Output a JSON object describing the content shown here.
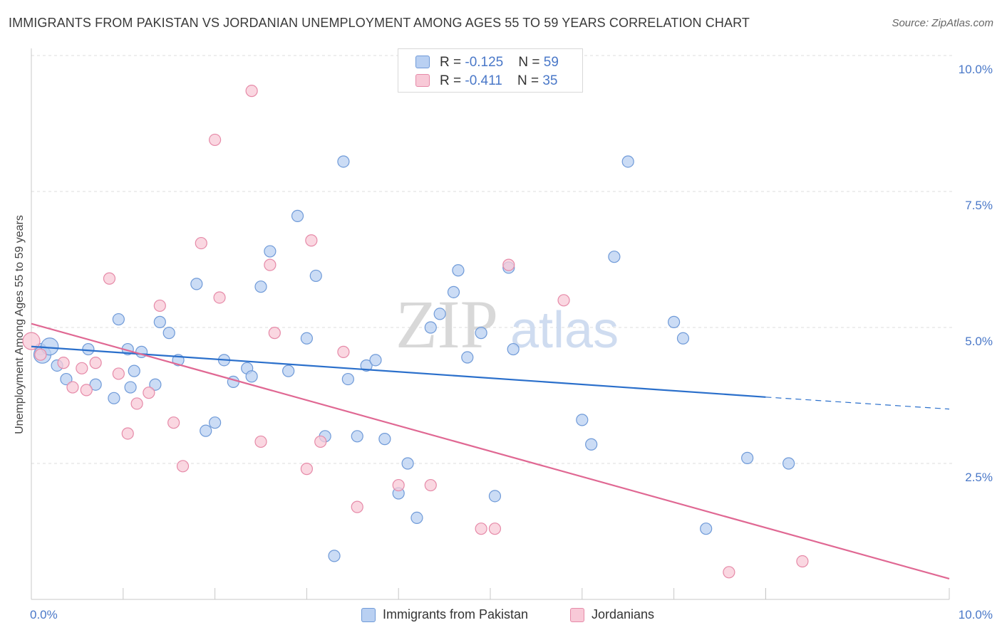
{
  "header": {
    "title": "IMMIGRANTS FROM PAKISTAN VS JORDANIAN UNEMPLOYMENT AMONG AGES 55 TO 59 YEARS CORRELATION CHART",
    "source": "Source: ZipAtlas.com"
  },
  "watermark": {
    "zip": "ZIP",
    "atlas": "atlas"
  },
  "legend_top": {
    "rows": [
      {
        "r_label": "R = ",
        "r_value": "-0.125",
        "n_label": "N = ",
        "n_value": "59"
      },
      {
        "r_label": "R = ",
        "r_value": "-0.411",
        "n_label": "N = ",
        "n_value": "35"
      }
    ]
  },
  "legend_bottom": {
    "items": [
      {
        "label": "Immigrants from Pakistan"
      },
      {
        "label": "Jordanians"
      }
    ]
  },
  "colors": {
    "pakistan_fill": "#b9d0f2",
    "pakistan_stroke": "#6f9ad8",
    "pakistan_line": "#2a6fcb",
    "jordan_fill": "#f8c9d7",
    "jordan_stroke": "#e68aa8",
    "jordan_line": "#e06893",
    "grid": "#dcdcdc",
    "tick_label": "#4a78c8"
  },
  "chart_data": {
    "type": "scatter",
    "title": "IMMIGRANTS FROM PAKISTAN VS JORDANIAN UNEMPLOYMENT AMONG AGES 55 TO 59 YEARS CORRELATION CHART",
    "xlabel": "",
    "ylabel": "Unemployment Among Ages 55 to 59 years",
    "xlim": [
      0,
      10
    ],
    "ylim": [
      0,
      10
    ],
    "x_tick_labels": [
      "0.0%",
      "10.0%"
    ],
    "y_ticks": [
      2.5,
      5.0,
      7.5,
      10.0
    ],
    "y_tick_labels": [
      "2.5%",
      "5.0%",
      "7.5%",
      "10.0%"
    ],
    "grid": true,
    "legend_position": "top-center",
    "series": [
      {
        "name": "Immigrants from Pakistan",
        "points": [
          [
            0.1,
            4.6
          ],
          [
            0.12,
            4.5
          ],
          [
            0.2,
            4.65
          ],
          [
            0.28,
            4.3
          ],
          [
            0.38,
            4.05
          ],
          [
            0.62,
            4.6
          ],
          [
            0.7,
            3.95
          ],
          [
            0.9,
            3.7
          ],
          [
            0.95,
            5.15
          ],
          [
            1.05,
            4.6
          ],
          [
            1.08,
            3.9
          ],
          [
            1.12,
            4.2
          ],
          [
            1.2,
            4.55
          ],
          [
            1.35,
            3.95
          ],
          [
            1.4,
            5.1
          ],
          [
            1.5,
            4.9
          ],
          [
            1.6,
            4.4
          ],
          [
            1.8,
            5.8
          ],
          [
            1.9,
            3.1
          ],
          [
            2.0,
            3.25
          ],
          [
            2.1,
            4.4
          ],
          [
            2.2,
            4.0
          ],
          [
            2.35,
            4.25
          ],
          [
            2.4,
            4.1
          ],
          [
            2.5,
            5.75
          ],
          [
            2.6,
            6.4
          ],
          [
            2.8,
            4.2
          ],
          [
            2.9,
            7.05
          ],
          [
            3.0,
            4.8
          ],
          [
            3.1,
            5.95
          ],
          [
            3.2,
            3.0
          ],
          [
            3.3,
            0.8
          ],
          [
            3.4,
            8.05
          ],
          [
            3.45,
            4.05
          ],
          [
            3.55,
            3.0
          ],
          [
            3.65,
            4.3
          ],
          [
            3.75,
            4.4
          ],
          [
            3.85,
            2.95
          ],
          [
            4.0,
            1.95
          ],
          [
            4.1,
            2.5
          ],
          [
            4.2,
            1.5
          ],
          [
            4.35,
            5.0
          ],
          [
            4.45,
            5.25
          ],
          [
            4.6,
            5.65
          ],
          [
            4.65,
            6.05
          ],
          [
            4.75,
            4.45
          ],
          [
            4.9,
            4.9
          ],
          [
            5.05,
            1.9
          ],
          [
            5.2,
            6.1
          ],
          [
            5.25,
            4.6
          ],
          [
            6.0,
            3.3
          ],
          [
            6.1,
            2.85
          ],
          [
            6.35,
            6.3
          ],
          [
            6.5,
            8.05
          ],
          [
            7.0,
            5.1
          ],
          [
            7.1,
            4.8
          ],
          [
            7.35,
            1.3
          ],
          [
            7.8,
            2.6
          ],
          [
            8.25,
            2.5
          ]
        ],
        "trend": {
          "x": [
            0.0,
            8.0
          ],
          "y": [
            4.65,
            3.72
          ],
          "dashed_extension": {
            "x": [
              8.0,
              10.0
            ],
            "y": [
              3.72,
              3.5
            ]
          }
        }
      },
      {
        "name": "Jordanians",
        "points": [
          [
            0.0,
            4.75
          ],
          [
            0.1,
            4.5
          ],
          [
            0.35,
            4.35
          ],
          [
            0.45,
            3.9
          ],
          [
            0.55,
            4.25
          ],
          [
            0.6,
            3.85
          ],
          [
            0.7,
            4.35
          ],
          [
            0.85,
            5.9
          ],
          [
            0.95,
            4.15
          ],
          [
            1.05,
            3.05
          ],
          [
            1.15,
            3.6
          ],
          [
            1.28,
            3.8
          ],
          [
            1.4,
            5.4
          ],
          [
            1.55,
            3.25
          ],
          [
            1.65,
            2.45
          ],
          [
            1.85,
            6.55
          ],
          [
            2.0,
            8.45
          ],
          [
            2.05,
            5.55
          ],
          [
            2.4,
            9.35
          ],
          [
            2.5,
            2.9
          ],
          [
            2.6,
            6.15
          ],
          [
            2.65,
            4.9
          ],
          [
            3.0,
            2.4
          ],
          [
            3.05,
            6.6
          ],
          [
            3.15,
            2.9
          ],
          [
            3.4,
            4.55
          ],
          [
            3.55,
            1.7
          ],
          [
            4.0,
            2.1
          ],
          [
            4.35,
            2.1
          ],
          [
            4.9,
            1.3
          ],
          [
            5.05,
            1.3
          ],
          [
            5.2,
            6.15
          ],
          [
            5.8,
            5.5
          ],
          [
            7.6,
            0.5
          ],
          [
            8.4,
            0.7
          ]
        ],
        "trend": {
          "x": [
            0.0,
            10.0
          ],
          "y": [
            5.07,
            0.38
          ]
        }
      }
    ]
  }
}
